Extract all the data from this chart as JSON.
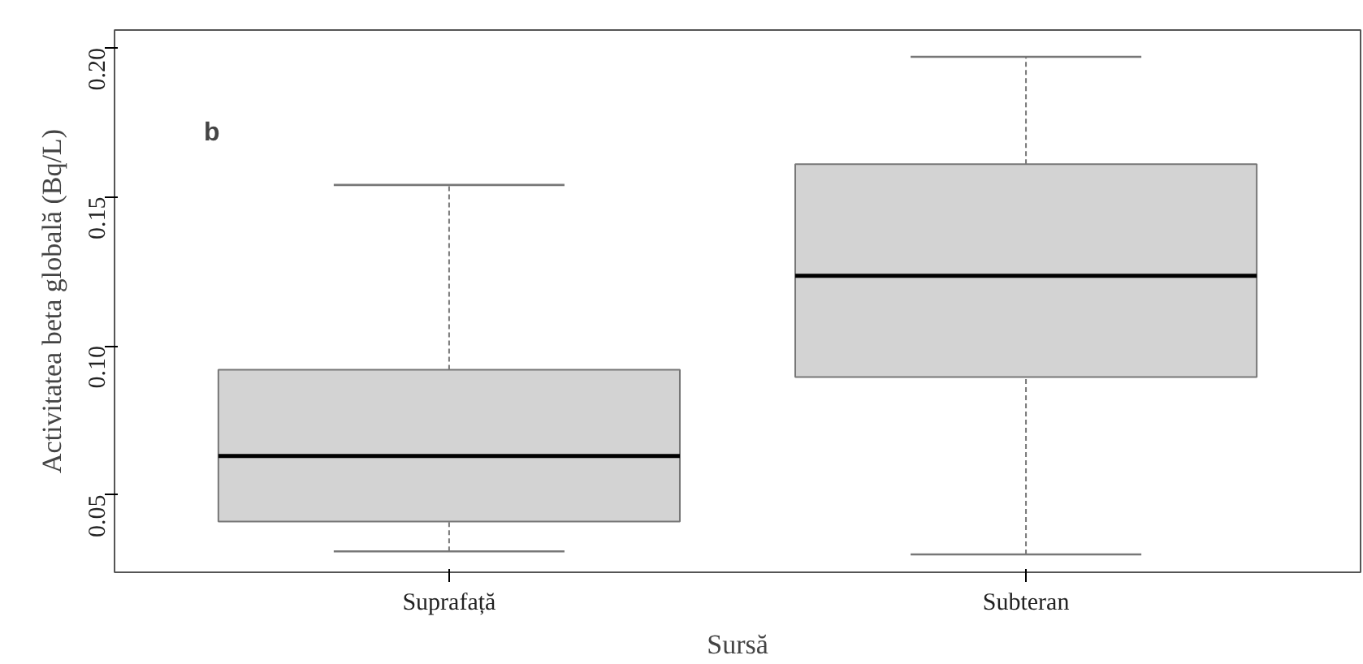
{
  "chart_data": {
    "type": "box",
    "xlabel": "Sursă",
    "ylabel": "Activitatea beta globală (Bq/L)",
    "categories": [
      "Suprafață",
      "Subteran"
    ],
    "boxes": [
      {
        "low": 0.031,
        "q1": 0.041,
        "median": 0.063,
        "q3": 0.092,
        "high": 0.154
      },
      {
        "low": 0.03,
        "q1": 0.0895,
        "median": 0.1235,
        "q3": 0.161,
        "high": 0.197
      }
    ],
    "color": "#d3d3d3",
    "ylim": [
      0.024,
      0.206
    ],
    "yticks": [
      {
        "value": 0.05,
        "label": "0.05"
      },
      {
        "value": 0.1,
        "label": "0.10"
      },
      {
        "value": 0.15,
        "label": "0.15"
      },
      {
        "value": 0.2,
        "label": "0.20"
      }
    ],
    "grid": false,
    "annotations": [
      "b"
    ]
  }
}
